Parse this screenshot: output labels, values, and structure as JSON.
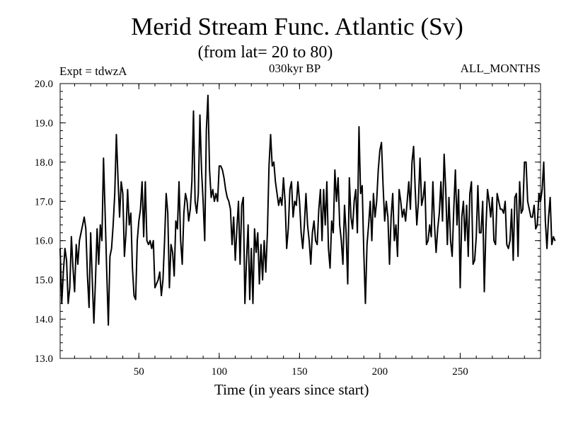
{
  "chart_data": {
    "type": "line",
    "title": "Merid Stream Func. Atlantic (Sv)",
    "subtitle": "(from lat= 20 to 80)",
    "experiment_label": "Expt = tdwzA",
    "period_label": "030kyr BP",
    "months_label": "ALL_MONTHS",
    "xlabel": "Time (in years since start)",
    "ylabel": "",
    "xlim": [
      1,
      300
    ],
    "ylim": [
      13.0,
      20.0
    ],
    "x_ticks": [
      50,
      100,
      150,
      200,
      250
    ],
    "x_tick_labels": [
      "50",
      "100",
      "150",
      "200",
      "250"
    ],
    "y_ticks": [
      13.0,
      14.0,
      15.0,
      16.0,
      17.0,
      18.0,
      19.0,
      20.0
    ],
    "y_tick_labels": [
      "13.0",
      "14.0",
      "15.0",
      "16.0",
      "17.0",
      "18.0",
      "19.0",
      "20.0"
    ],
    "grid": false,
    "series": [
      {
        "name": "Merid Stream Func. Atlantic",
        "x_start": 1,
        "x_step": 1,
        "values": [
          15.8,
          14.4,
          15.2,
          15.8,
          15.5,
          14.4,
          14.8,
          16.1,
          15.3,
          14.7,
          15.9,
          15.4,
          16.0,
          16.2,
          16.4,
          16.6,
          16.3,
          15.1,
          14.3,
          16.2,
          15.0,
          13.9,
          15.0,
          16.3,
          15.4,
          16.4,
          16.0,
          18.1,
          16.7,
          15.2,
          13.85,
          15.6,
          15.8,
          16.4,
          17.2,
          18.7,
          17.6,
          16.6,
          17.5,
          17.2,
          15.6,
          16.2,
          17.3,
          16.4,
          16.7,
          15.3,
          14.6,
          14.5,
          16.0,
          16.5,
          16.8,
          17.5,
          16.1,
          17.5,
          16.0,
          15.9,
          16.0,
          15.8,
          16.0,
          14.8,
          14.9,
          15.0,
          15.2,
          14.6,
          15.0,
          16.0,
          17.2,
          16.7,
          14.8,
          15.9,
          15.7,
          15.1,
          16.5,
          16.3,
          17.5,
          16.0,
          15.4,
          16.7,
          17.2,
          17.0,
          16.5,
          16.8,
          17.5,
          19.3,
          17.0,
          16.7,
          17.2,
          19.2,
          17.8,
          17.0,
          16.0,
          18.8,
          19.7,
          17.8,
          17.1,
          17.3,
          17.0,
          17.2,
          17.0,
          17.9,
          17.9,
          17.8,
          17.6,
          17.3,
          17.1,
          17.0,
          16.8,
          15.9,
          16.6,
          15.5,
          16.3,
          17.0,
          15.4,
          16.9,
          17.1,
          14.4,
          15.5,
          16.4,
          14.5,
          15.8,
          14.4,
          16.3,
          15.7,
          16.2,
          14.9,
          15.9,
          15.0,
          16.0,
          15.2,
          16.2,
          17.9,
          18.7,
          17.9,
          18.0,
          17.5,
          17.2,
          16.9,
          17.1,
          16.9,
          17.6,
          17.0,
          15.8,
          16.3,
          17.3,
          17.5,
          16.6,
          17.0,
          16.9,
          17.5,
          17.0,
          16.2,
          15.8,
          16.4,
          17.2,
          16.4,
          16.0,
          15.4,
          16.2,
          16.5,
          16.0,
          15.9,
          16.8,
          17.3,
          16.0,
          17.3,
          16.4,
          17.5,
          15.8,
          15.3,
          16.5,
          16.2,
          17.8,
          17.0,
          17.6,
          16.4,
          16.0,
          15.4,
          16.9,
          16.2,
          14.9,
          17.6,
          16.6,
          16.3,
          17.0,
          17.3,
          16.2,
          18.9,
          17.2,
          17.4,
          15.7,
          14.4,
          15.9,
          16.4,
          17.0,
          16.0,
          17.2,
          16.6,
          17.0,
          17.8,
          18.3,
          18.5,
          17.4,
          16.5,
          17.0,
          16.6,
          15.4,
          16.6,
          17.2,
          16.0,
          16.4,
          15.6,
          17.3,
          17.0,
          16.6,
          16.8,
          16.5,
          17.0,
          17.5,
          16.8,
          18.0,
          18.4,
          17.3,
          16.4,
          17.0,
          18.1,
          16.9,
          17.1,
          17.5,
          15.9,
          16.0,
          16.4,
          16.1,
          17.5,
          16.4,
          15.7,
          16.3,
          16.7,
          17.5,
          16.5,
          18.2,
          17.3,
          15.9,
          17.1,
          16.0,
          15.6,
          16.8,
          17.8,
          16.4,
          17.3,
          14.8,
          16.6,
          17.0,
          16.0,
          16.9,
          15.6,
          17.2,
          17.5,
          15.4,
          15.5,
          16.1,
          17.4,
          16.2,
          16.2,
          17.0,
          14.7,
          16.3,
          17.3,
          17.0,
          16.6,
          17.1,
          16.0,
          15.9,
          17.2,
          17.0,
          16.8,
          16.8,
          16.7,
          17.0,
          15.9,
          15.8,
          16.0,
          16.8,
          15.5,
          17.1,
          17.2,
          15.6,
          17.5,
          16.7,
          16.8,
          18.0,
          18.0,
          17.0,
          16.8,
          16.6,
          16.6,
          16.9,
          16.3,
          16.4,
          17.2,
          17.0,
          17.3,
          18.0,
          16.5,
          15.8,
          16.6,
          17.1,
          15.9,
          16.1,
          16.0
        ]
      }
    ]
  }
}
